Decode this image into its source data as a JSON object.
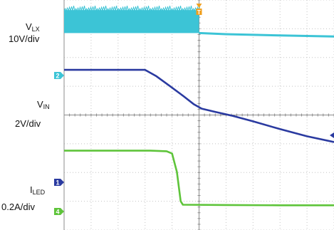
{
  "labels": {
    "ch1_name": "V",
    "ch1_sub": "LX",
    "ch1_scale": "10V/div",
    "ch2_name": "V",
    "ch2_sub": "IN",
    "ch2_scale": "2V/div",
    "ch3_name": "I",
    "ch3_sub": "LED",
    "ch3_scale": "0.2A/div"
  },
  "markers": {
    "trigger": "T",
    "vlx": "2",
    "vin": "1",
    "iled": "4"
  },
  "chart_data": {
    "type": "line",
    "title": "",
    "grid": true,
    "divisions": {
      "x": 10,
      "y": 8
    },
    "xlabel": "",
    "ylabel": "",
    "xlim": [
      0,
      10
    ],
    "ylim": [
      0,
      8
    ],
    "x_unit": "div",
    "trigger_position_div": 5.0,
    "series": [
      {
        "name": "VLX",
        "color": "#3cc4d6",
        "scale": "10V/div",
        "style": "switching_band",
        "band_low_div": 6.85,
        "band_high_div": 7.65,
        "band_end_x": 5.0,
        "points": [
          [
            5.0,
            6.85
          ],
          [
            6.0,
            6.81
          ],
          [
            7.0,
            6.79
          ],
          [
            8.0,
            6.77
          ],
          [
            9.0,
            6.75
          ],
          [
            10.0,
            6.73
          ]
        ]
      },
      {
        "name": "VIN",
        "color": "#2a3aa0",
        "scale": "2V/div",
        "points": [
          [
            0,
            5.57
          ],
          [
            2.6,
            5.57
          ],
          [
            3.0,
            5.57
          ],
          [
            3.4,
            5.36
          ],
          [
            3.9,
            5.02
          ],
          [
            4.4,
            4.67
          ],
          [
            4.8,
            4.38
          ],
          [
            5.1,
            4.22
          ],
          [
            5.6,
            4.11
          ],
          [
            6.2,
            3.98
          ],
          [
            7.0,
            3.78
          ],
          [
            8.0,
            3.51
          ],
          [
            9.0,
            3.26
          ],
          [
            10.0,
            3.06
          ]
        ]
      },
      {
        "name": "ILED",
        "color": "#5ec43a",
        "scale": "0.2A/div",
        "points": [
          [
            0,
            2.76
          ],
          [
            3.2,
            2.76
          ],
          [
            3.8,
            2.74
          ],
          [
            4.0,
            2.66
          ],
          [
            4.18,
            2.02
          ],
          [
            4.32,
            1.0
          ],
          [
            4.4,
            0.88
          ],
          [
            6.0,
            0.87
          ],
          [
            8.0,
            0.86
          ],
          [
            10.0,
            0.86
          ]
        ]
      }
    ]
  }
}
